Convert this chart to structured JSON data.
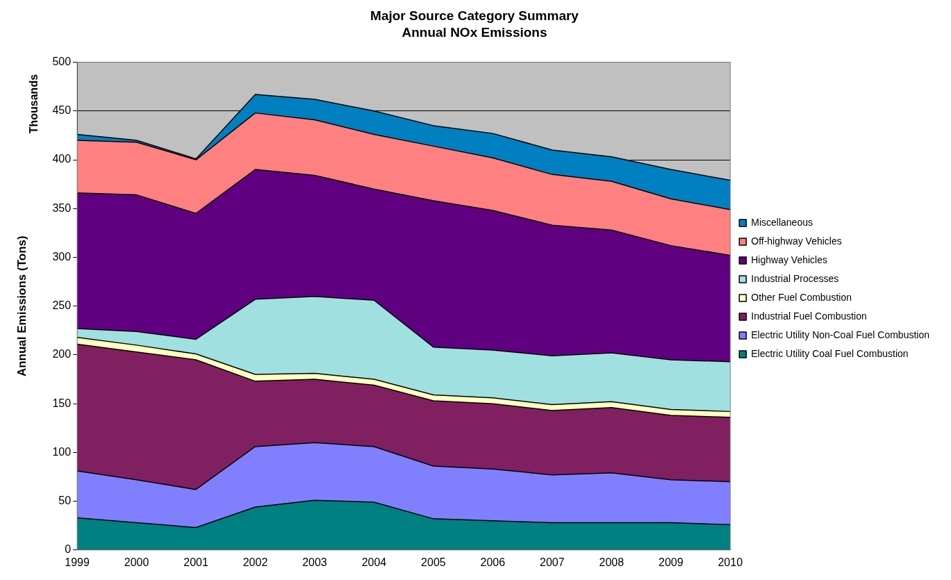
{
  "chart_data": {
    "type": "area",
    "title": "Major Source Category Summary",
    "subtitle": "Annual NOx Emissions",
    "ylabel": "Annual Emissions (Tons)",
    "annotations": [
      "Thousands"
    ],
    "categories": [
      "1999",
      "2000",
      "2001",
      "2002",
      "2003",
      "2004",
      "2005",
      "2006",
      "2007",
      "2008",
      "2009",
      "2010"
    ],
    "stacked": true,
    "ylim": [
      0,
      500
    ],
    "yticks": [
      0,
      50,
      100,
      150,
      200,
      250,
      300,
      350,
      400,
      450,
      500
    ],
    "grid": "y",
    "legend": "right",
    "series": [
      {
        "name": "Electric Utility Coal Fuel Combustion",
        "color": "#008080",
        "values": [
          33,
          28,
          23,
          44,
          51,
          49,
          32,
          30,
          28,
          28,
          28,
          26
        ]
      },
      {
        "name": "Electric Utility Non-Coal Fuel Combustion",
        "color": "#8080ff",
        "values": [
          48,
          44,
          39,
          62,
          59,
          57,
          54,
          53,
          49,
          51,
          44,
          44
        ]
      },
      {
        "name": "Industrial Fuel Combustion",
        "color": "#802060",
        "values": [
          130,
          131,
          133,
          67,
          65,
          63,
          67,
          67,
          66,
          67,
          66,
          66
        ]
      },
      {
        "name": "Other Fuel Combustion",
        "color": "#ffffc0",
        "values": [
          7,
          7,
          6,
          7,
          6,
          6,
          6,
          6,
          6,
          6,
          6,
          6
        ]
      },
      {
        "name": "Industrial Processes",
        "color": "#a0e0e0",
        "values": [
          9,
          14,
          15,
          77,
          79,
          81,
          49,
          49,
          50,
          50,
          51,
          51
        ]
      },
      {
        "name": "Highway Vehicles",
        "color": "#600080",
        "values": [
          139,
          140,
          129,
          133,
          124,
          114,
          150,
          143,
          134,
          126,
          117,
          109
        ]
      },
      {
        "name": "Off-highway Vehicles",
        "color": "#ff8080",
        "values": [
          54,
          54,
          55,
          58,
          57,
          56,
          56,
          54,
          52,
          50,
          48,
          47
        ]
      },
      {
        "name": "Miscellaneous",
        "color": "#0080c0",
        "values": [
          6,
          2,
          1,
          19,
          21,
          24,
          21,
          25,
          25,
          25,
          30,
          30
        ]
      }
    ]
  }
}
